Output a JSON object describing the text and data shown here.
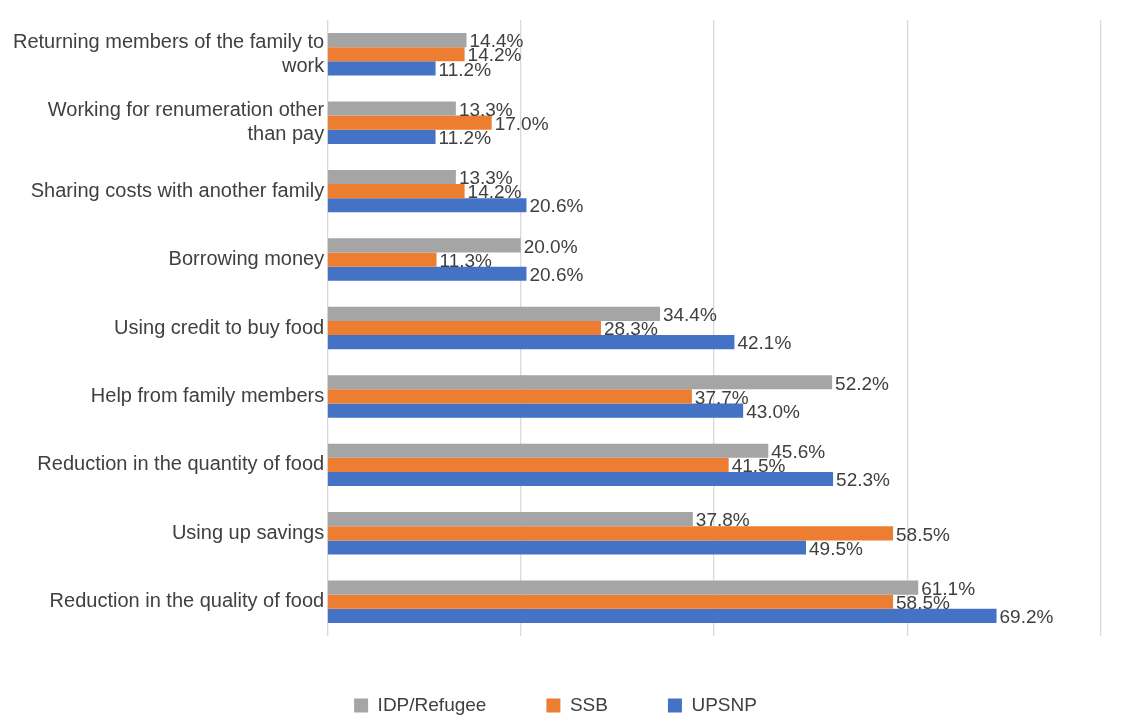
{
  "chart_data": {
    "type": "bar",
    "orientation": "horizontal",
    "categories": [
      "Returning members of the family to work",
      "Working for renumeration other than pay",
      "Sharing costs with another family",
      "Borrowing money",
      "Using credit to buy food",
      "Help from family members",
      "Reduction in the quantity of food",
      "Using up savings",
      "Reduction in the quality of food"
    ],
    "series": [
      {
        "name": "IDP/Refugee",
        "color": "#a5a5a5",
        "values": [
          14.4,
          13.3,
          13.3,
          20.0,
          34.4,
          52.2,
          45.6,
          37.8,
          61.1
        ],
        "value_labels": [
          "14.4%",
          "13.3%",
          "13.3%",
          "20.0%",
          "34.4%",
          "52.2%",
          "45.6%",
          "37.8%",
          "61.1%"
        ]
      },
      {
        "name": "SSB",
        "color": "#ed7d31",
        "values": [
          14.2,
          17.0,
          14.2,
          11.3,
          28.3,
          37.7,
          41.5,
          58.5,
          58.5
        ],
        "value_labels": [
          "14.2%",
          "17.0%",
          "14.2%",
          "11.3%",
          "28.3%",
          "37.7%",
          "41.5%",
          "58.5%",
          "58.5%"
        ]
      },
      {
        "name": "UPSNP",
        "color": "#4472c4",
        "values": [
          11.2,
          11.2,
          20.6,
          20.6,
          42.1,
          43.0,
          52.3,
          49.5,
          69.2
        ],
        "value_labels": [
          "11.2%",
          "11.2%",
          "20.6%",
          "20.6%",
          "42.1%",
          "43.0%",
          "52.3%",
          "49.5%",
          "69.2%"
        ]
      }
    ],
    "xlim": [
      0,
      80
    ],
    "xticks": [
      {
        "value": 0,
        "label": null
      },
      {
        "value": 20,
        "label": null
      },
      {
        "value": 40,
        "label": null
      },
      {
        "value": 60,
        "label": null
      },
      {
        "value": 80,
        "label": null
      }
    ],
    "grid": "x",
    "legend": "bottom",
    "tick_labels": "y"
  }
}
